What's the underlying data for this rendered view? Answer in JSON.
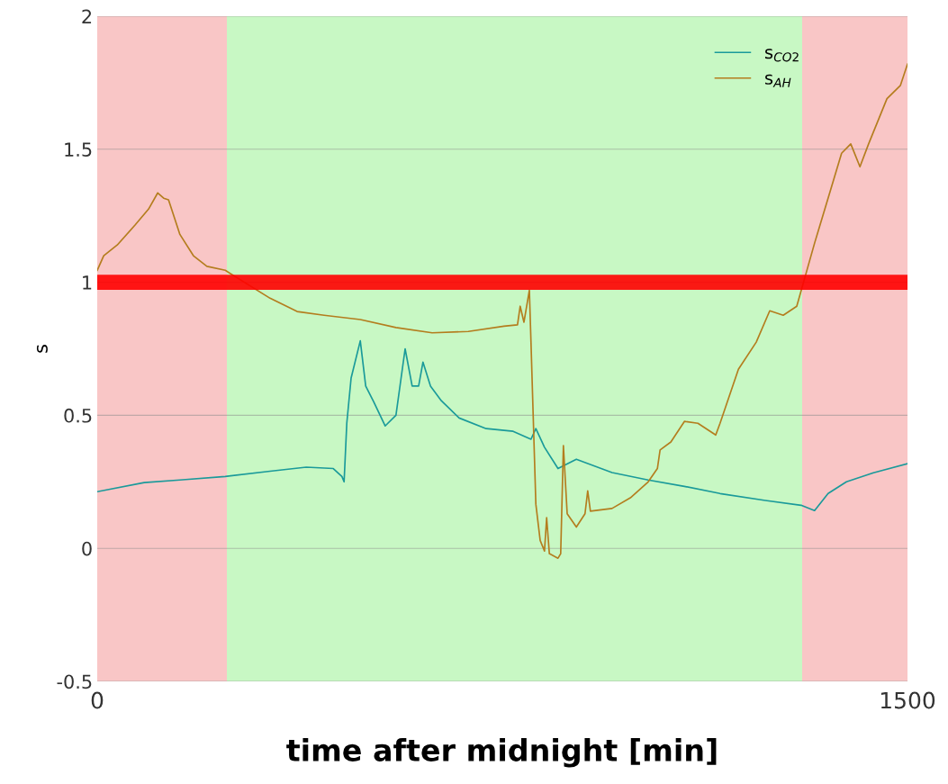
{
  "chart_data": {
    "type": "line",
    "xlabel": "time after midnight [min]",
    "ylabel": "s",
    "xlim": [
      0,
      1500
    ],
    "xticks": [
      0,
      1500
    ],
    "ylim": [
      -0.5,
      2
    ],
    "yticks": [
      -0.5,
      0,
      0.5,
      1,
      1.5,
      2
    ],
    "grid": "y",
    "legend": "top right",
    "line_style": "solid",
    "marker": "none",
    "bands": [
      {
        "axis": "x",
        "from": 0,
        "to": 240,
        "color": "#f9c6c6"
      },
      {
        "axis": "x",
        "from": 240,
        "to": 1305,
        "color": "#c8f8c4"
      },
      {
        "axis": "x",
        "from": 1305,
        "to": 1500,
        "color": "#f9c6c6"
      }
    ],
    "ref_lines": [
      {
        "axis": "y",
        "value": 1,
        "color": "#ff0000"
      }
    ],
    "series": [
      {
        "name": "s$_{CO2}$",
        "color": "#1a9a9a",
        "x": [
          0,
          87,
          153,
          237,
          320,
          387,
          437,
          453,
          457,
          462,
          470,
          487,
          497,
          512,
          533,
          553,
          570,
          583,
          595,
          603,
          617,
          637,
          670,
          720,
          770,
          803,
          812,
          828,
          853,
          887,
          953,
          1020,
          1087,
          1153,
          1237,
          1303,
          1328,
          1353,
          1387,
          1437,
          1500
        ],
        "values": [
          0.213,
          0.247,
          0.257,
          0.27,
          0.29,
          0.305,
          0.3,
          0.27,
          0.25,
          0.47,
          0.64,
          0.78,
          0.61,
          0.55,
          0.46,
          0.5,
          0.75,
          0.61,
          0.61,
          0.7,
          0.61,
          0.555,
          0.49,
          0.45,
          0.44,
          0.41,
          0.45,
          0.38,
          0.3,
          0.335,
          0.285,
          0.257,
          0.233,
          0.206,
          0.18,
          0.162,
          0.142,
          0.206,
          0.25,
          0.284,
          0.318
        ]
      },
      {
        "name": "s$_{AH}$",
        "color": "#b47d1e",
        "x": [
          0,
          12,
          37,
          70,
          95,
          112,
          123,
          132,
          153,
          178,
          203,
          237,
          320,
          370,
          420,
          487,
          553,
          620,
          687,
          753,
          778,
          783,
          790,
          800,
          803,
          812,
          820,
          828,
          832,
          837,
          853,
          858,
          863,
          870,
          887,
          903,
          908,
          913,
          953,
          987,
          1020,
          1037,
          1042,
          1062,
          1087,
          1112,
          1145,
          1153,
          1187,
          1220,
          1245,
          1270,
          1295,
          1328,
          1353,
          1378,
          1395,
          1412,
          1428,
          1462,
          1487,
          1500
        ],
        "values": [
          1.045,
          1.1,
          1.14,
          1.215,
          1.275,
          1.336,
          1.316,
          1.31,
          1.18,
          1.1,
          1.06,
          1.045,
          0.94,
          0.89,
          0.876,
          0.86,
          0.83,
          0.81,
          0.815,
          0.835,
          0.84,
          0.91,
          0.85,
          0.97,
          0.775,
          0.166,
          0.03,
          -0.01,
          0.115,
          -0.02,
          -0.037,
          -0.02,
          0.386,
          0.13,
          0.08,
          0.13,
          0.216,
          0.14,
          0.15,
          0.19,
          0.25,
          0.3,
          0.37,
          0.4,
          0.477,
          0.47,
          0.426,
          0.47,
          0.673,
          0.775,
          0.893,
          0.876,
          0.91,
          1.147,
          1.316,
          1.485,
          1.52,
          1.434,
          1.52,
          1.69,
          1.74,
          1.82
        ]
      }
    ]
  }
}
